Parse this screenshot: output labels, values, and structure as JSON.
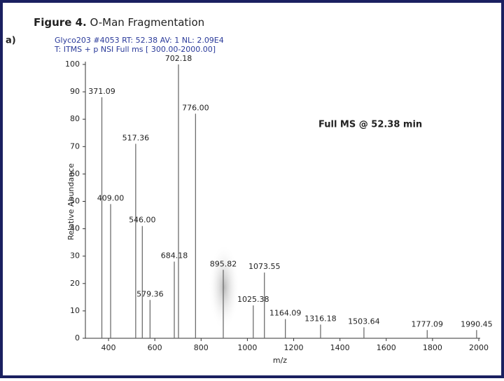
{
  "chart_data": {
    "type": "stem",
    "title_label": "Figure 4.",
    "title": "O-Man Fragmentation",
    "panel_label": "a)",
    "header": [
      "Glyco203 #4053  RT: 52.38  AV: 1  NL: 2.09E4",
      "T: ITMS + p NSI Full ms [ 300.00-2000.00]"
    ],
    "annotation": "Full MS @ 52.38 min",
    "x_label": "m/z",
    "y_label": "Relative Abundance",
    "x": [
      371.09,
      409.0,
      517.36,
      546.0,
      579.36,
      684.18,
      702.18,
      776.0,
      895.82,
      1025.38,
      1073.55,
      1164.09,
      1316.18,
      1503.64,
      1777.09,
      1990.45
    ],
    "labels": [
      "371.09",
      "409.00",
      "517.36",
      "546.00",
      "579.36",
      "684.18",
      "702.18",
      "776.00",
      "895.82",
      "1025.38",
      "1073.55",
      "1164.09",
      "1316.18",
      "1503.64",
      "1777.09",
      "1990.45"
    ],
    "values": [
      88,
      49,
      71,
      41,
      14,
      28,
      100,
      82,
      25,
      12,
      24,
      7,
      5,
      4,
      3,
      3
    ],
    "color": "#6e6e6e",
    "xlim": [
      300,
      2000
    ],
    "xticks": [
      400,
      600,
      800,
      1000,
      1200,
      1400,
      1600,
      1800,
      2000
    ],
    "ylim": [
      0,
      100
    ],
    "yticks": [
      0,
      10,
      20,
      30,
      40,
      50,
      60,
      70,
      80,
      90,
      100
    ]
  }
}
